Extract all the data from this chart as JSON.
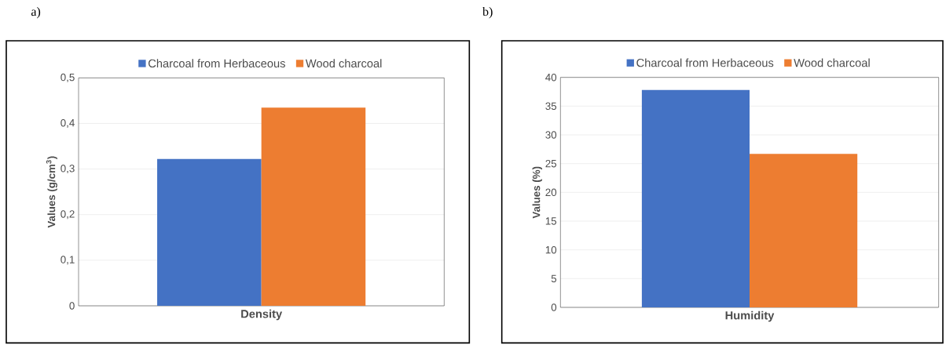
{
  "chart_data": [
    {
      "type": "bar",
      "title": "a)",
      "ylabel": "Values (g/cm$^{3}$)",
      "categories": [
        "Density"
      ],
      "series": [
        {
          "name": "Charcoal from Herbaceous",
          "color": "#4472c4",
          "values": [
            0.322
          ]
        },
        {
          "name": "Wood charcoal",
          "color": "#ed7d31",
          "values": [
            0.435
          ]
        }
      ],
      "ylim": [
        0,
        0.5
      ],
      "yticks": [
        0,
        {
          "value": 0.1,
          "label": "0,1"
        },
        {
          "value": 0.2,
          "label": "0,2"
        },
        {
          "value": 0.3,
          "label": "0,3"
        },
        {
          "value": 0.4,
          "label": "0,4"
        },
        {
          "value": 0.5,
          "label": "0,5"
        }
      ],
      "grid": "y",
      "legend": "top"
    },
    {
      "type": "bar",
      "title": "b)",
      "ylabel": "Values (%)",
      "categories": [
        "Humidity"
      ],
      "series": [
        {
          "name": "Charcoal from Herbaceous",
          "color": "#4472c4",
          "values": [
            37.8
          ]
        },
        {
          "name": "Wood charcoal",
          "color": "#ed7d31",
          "values": [
            26.7
          ]
        }
      ],
      "ylim": [
        0,
        40
      ],
      "yticks": [
        0,
        5,
        10,
        15,
        20,
        25,
        30,
        35,
        40
      ],
      "grid": "y",
      "legend": "top"
    }
  ]
}
